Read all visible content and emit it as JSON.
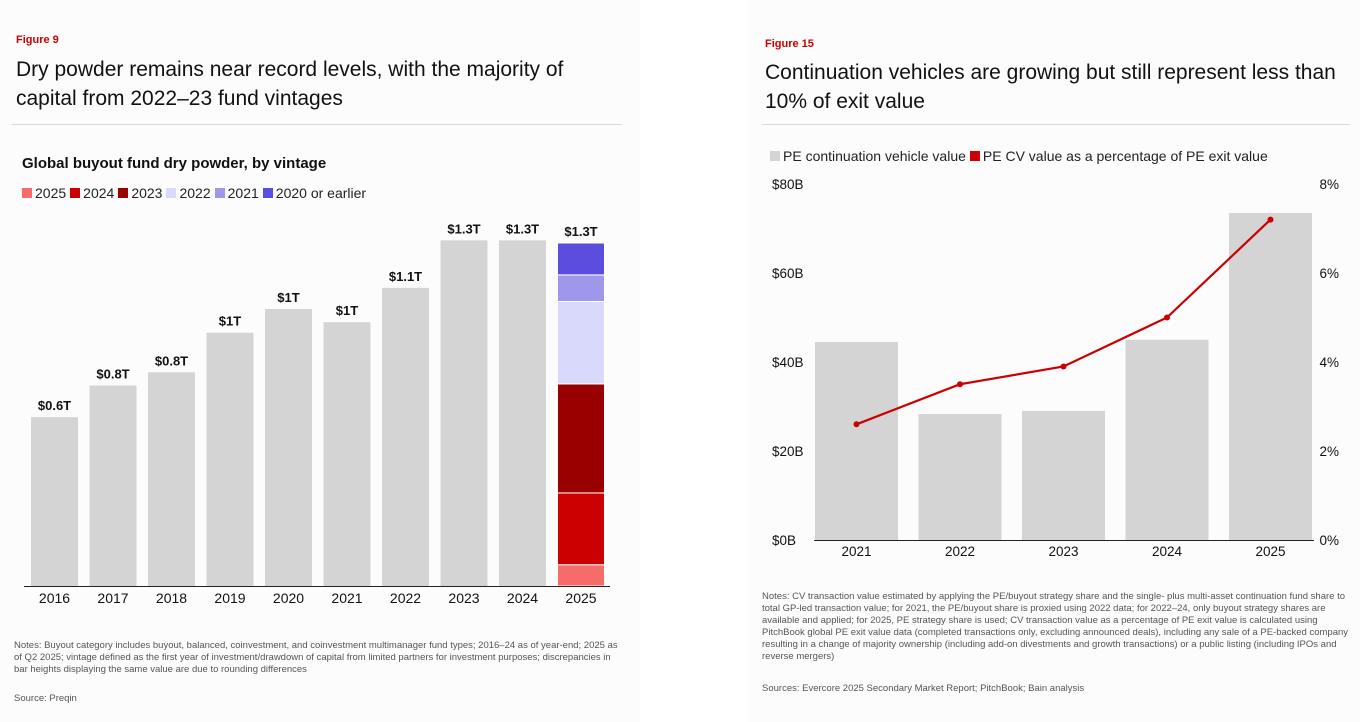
{
  "left": {
    "figure_label": "Figure 9",
    "title": "Dry powder remains near record levels, with the majority of capital from 2022–23 fund vintages",
    "chart_title": "Global buyout fund dry powder, by vintage",
    "legend": [
      {
        "label": "2025",
        "color": "#f76b6b"
      },
      {
        "label": "2024",
        "color": "#cc0000"
      },
      {
        "label": "2023",
        "color": "#990000"
      },
      {
        "label": "2022",
        "color": "#d9d9fc"
      },
      {
        "label": "2021",
        "color": "#9f97ea"
      },
      {
        "label": "2020 or earlier",
        "color": "#5b4ddd"
      }
    ],
    "notes": "Notes: Buyout category includes buyout, balanced, coinvestment, and coinvestment multimanager fund types; 2016–24 as of year-end; 2025 as of Q2 2025; vintage defined as the first year of investment/drawdown of capital from limited partners for investment purposes; discrepancies in bar heights displaying the same value are due to rounding differences",
    "source": "Source: Preqin"
  },
  "right": {
    "figure_label": "Figure 15",
    "title": "Continuation vehicles are growing but still represent less than 10% of exit value",
    "legend": [
      {
        "label": "PE continuation vehicle value",
        "color": "#d4d4d4"
      },
      {
        "label": "PE CV value as a percentage of PE exit value",
        "color": "#cc0000"
      }
    ],
    "notes": "Notes: CV transaction value estimated by applying the PE/buyout strategy share and the single- plus multi-asset continuation fund share to total GP-led transaction value; for 2021, the PE/buyout share is proxied using 2022 data; for 2022–24, only buyout strategy shares are available and applied; for 2025, PE strategy share is used; CV transaction value as a percentage of PE exit value is calculated using PitchBook global PE exit value data (completed transactions only, excluding announced deals), including any sale of a PE-backed company resulting in a change of majority ownership (including add-on divestments and growth transactions) or a public listing (including IPOs and reverse mergers)",
    "source": "Sources: Evercore 2025 Secondary Market Report; PitchBook; Bain analysis"
  },
  "chart_data": [
    {
      "type": "bar",
      "title": "Global buyout fund dry powder, by vintage",
      "xlabel": "",
      "ylabel": "",
      "ylim": [
        0,
        1.3
      ],
      "bar_color": "#d4d4d4",
      "categories": [
        "2016",
        "2017",
        "2018",
        "2019",
        "2020",
        "2021",
        "2022",
        "2023",
        "2024",
        "2025"
      ],
      "values": [
        0.64,
        0.76,
        0.81,
        0.96,
        1.05,
        1.0,
        1.13,
        1.31,
        1.31,
        1.3
      ],
      "labels": [
        "$0.6T",
        "$0.8T",
        "$0.8T",
        "$1T",
        "$1T",
        "$1T",
        "$1.1T",
        "$1.3T",
        "$1.3T",
        "$1.3T"
      ],
      "stacked_2025": [
        {
          "name": "2025",
          "value": 0.08,
          "color": "#f76b6b"
        },
        {
          "name": "2024",
          "value": 0.27,
          "color": "#cc0000"
        },
        {
          "name": "2023",
          "value": 0.41,
          "color": "#990000"
        },
        {
          "name": "2022",
          "value": 0.31,
          "color": "#d9d9fc"
        },
        {
          "name": "2021",
          "value": 0.1,
          "color": "#9f97ea"
        },
        {
          "name": "2020 or earlier",
          "value": 0.12,
          "color": "#5b4ddd"
        }
      ]
    },
    {
      "type": "bar",
      "title": "",
      "categories": [
        "2021",
        "2022",
        "2023",
        "2024",
        "2025"
      ],
      "series": [
        {
          "name": "PE continuation vehicle value",
          "type": "bar",
          "axis": "left",
          "values": [
            44.5,
            28.3,
            29.0,
            45.0,
            73.5
          ],
          "color": "#d4d4d4"
        },
        {
          "name": "PE CV value as a percentage of PE exit value",
          "type": "line",
          "axis": "right",
          "values": [
            2.6,
            3.5,
            3.9,
            5.0,
            7.2
          ],
          "color": "#cc0000"
        }
      ],
      "ylim": [
        0,
        80
      ],
      "y_ticks": [
        "$0B",
        "$20B",
        "$40B",
        "$60B",
        "$80B"
      ],
      "y2lim": [
        0,
        8
      ],
      "y2_ticks": [
        "0%",
        "2%",
        "4%",
        "6%",
        "8%"
      ]
    }
  ]
}
